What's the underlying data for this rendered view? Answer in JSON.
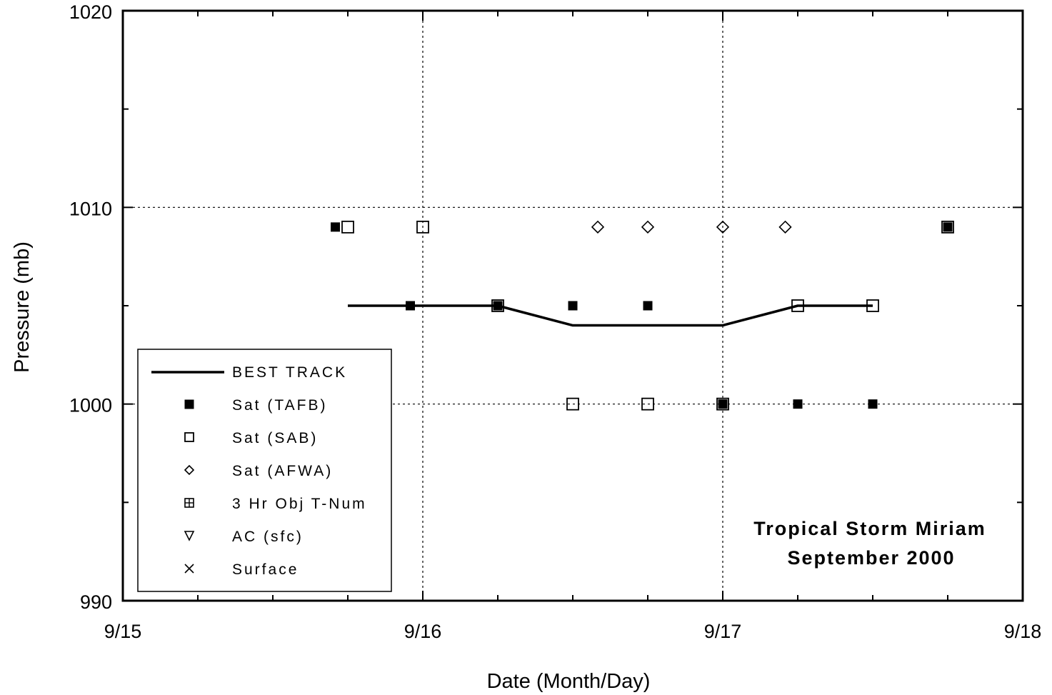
{
  "chart_data": {
    "type": "scatter",
    "xlabel": "Date (Month/Day)",
    "ylabel": "Pressure (mb)",
    "xlim": [
      "9/15",
      "9/18"
    ],
    "ylim": [
      990,
      1020
    ],
    "x_ticks": [
      "9/15",
      "9/16",
      "9/17",
      "9/18"
    ],
    "y_ticks": [
      990,
      1000,
      1010,
      1020
    ],
    "grid": true,
    "legend_position": "lower-left",
    "annotation": [
      "Tropical Storm Miriam",
      "September 2000"
    ],
    "series": [
      {
        "name": "BEST TRACK",
        "marker": "line",
        "x": [
          "9/15 18Z",
          "9/16 00Z",
          "9/16 06Z",
          "9/16 12Z",
          "9/16 18Z",
          "9/17 00Z",
          "9/17 06Z",
          "9/17 12Z"
        ],
        "y": [
          1005,
          1005,
          1005,
          1004,
          1004,
          1004,
          1005,
          1005
        ]
      },
      {
        "name": "Sat (TAFB)",
        "marker": "filled-square",
        "x": [
          "9/15 17Z",
          "9/15 23Z",
          "9/16 06Z",
          "9/16 12Z",
          "9/16 18Z",
          "9/17 00Z",
          "9/17 06Z",
          "9/17 12Z",
          "9/17 18Z"
        ],
        "y": [
          1009,
          1005,
          1005,
          1005,
          1005,
          1000,
          1000,
          1000,
          1009
        ]
      },
      {
        "name": "Sat (SAB)",
        "marker": "open-square",
        "x": [
          "9/15 18Z",
          "9/16 00Z",
          "9/16 06Z",
          "9/16 12Z",
          "9/16 18Z",
          "9/17 00Z",
          "9/17 06Z",
          "9/17 12Z",
          "9/17 18Z"
        ],
        "y": [
          1009,
          1009,
          1005,
          1000,
          1000,
          1000,
          1005,
          1005,
          1009
        ]
      },
      {
        "name": "Sat (AFWA)",
        "marker": "open-diamond",
        "x": [
          "9/16 14Z",
          "9/16 18Z",
          "9/17 00Z",
          "9/17 05Z"
        ],
        "y": [
          1009,
          1009,
          1009,
          1009
        ]
      },
      {
        "name": "3 Hr Obj T-Num",
        "marker": "crossed-square",
        "x": [],
        "y": []
      },
      {
        "name": "AC (sfc)",
        "marker": "open-triangle-down",
        "x": [],
        "y": []
      },
      {
        "name": "Surface",
        "marker": "x",
        "x": [],
        "y": []
      }
    ],
    "colors": {
      "axis": "#000000",
      "grid": "#000000",
      "background": "#ffffff"
    }
  }
}
